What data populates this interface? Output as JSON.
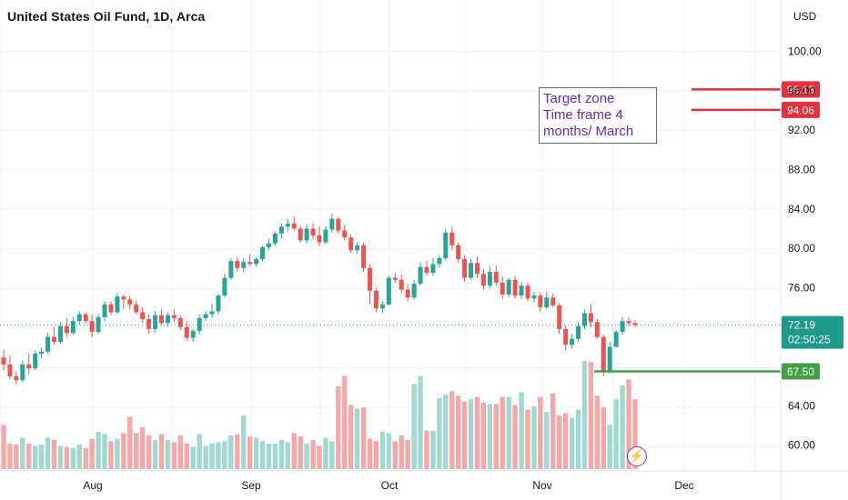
{
  "header": {
    "title": "United States Oil Fund, 1D, Arca",
    "currency": "USD"
  },
  "annotation": {
    "lines": [
      "Target zone",
      "Time frame 4",
      "months/ March"
    ]
  },
  "colors": {
    "up": "#26a69a",
    "down": "#ef5350",
    "volume_up": "#9fd9d2",
    "volume_down": "#f5a8a6",
    "target_line": "#e5303e",
    "support_line": "#43a047",
    "last_price_bg": "#1d9a8a",
    "annotation_text": "#5b2dbf",
    "lightning": "#9c27b0"
  },
  "chart_data": {
    "type": "candlestick",
    "y_axis": {
      "ticks": [
        "100.00",
        "96.00",
        "92.00",
        "88.00",
        "84.00",
        "80.00",
        "76.00",
        "64.00",
        "60.00"
      ],
      "tick_values": [
        100,
        96,
        92,
        88,
        84,
        80,
        76,
        64,
        60
      ],
      "range": [
        57.2,
        103.4
      ]
    },
    "x_axis": {
      "labels": [
        "Aug",
        "Sep",
        "Oct",
        "Nov",
        "Dec"
      ]
    },
    "price_labels": {
      "target_high": "96.13",
      "target_low": "94.06",
      "last_price": "72.19",
      "countdown": "02:50:25",
      "support": "67.50"
    },
    "levels": {
      "target_high": 96.13,
      "target_low": 94.06,
      "last_price": 72.19,
      "support": 67.5
    },
    "volume_heights": [
      0.38,
      0.22,
      0.21,
      0.27,
      0.22,
      0.2,
      0.21,
      0.27,
      0.25,
      0.2,
      0.19,
      0.18,
      0.21,
      0.18,
      0.26,
      0.32,
      0.3,
      0.24,
      0.26,
      0.31,
      0.45,
      0.31,
      0.36,
      0.29,
      0.25,
      0.3,
      0.25,
      0.23,
      0.29,
      0.22,
      0.19,
      0.3,
      0.2,
      0.22,
      0.23,
      0.24,
      0.29,
      0.3,
      0.46,
      0.28,
      0.27,
      0.24,
      0.22,
      0.22,
      0.25,
      0.23,
      0.31,
      0.28,
      0.22,
      0.25,
      0.2,
      0.27,
      0.24,
      0.71,
      0.8,
      0.55,
      0.52,
      0.53,
      0.26,
      0.24,
      0.32,
      0.31,
      0.24,
      0.29,
      0.25,
      0.73,
      0.8,
      0.33,
      0.33,
      0.61,
      0.64,
      0.67,
      0.63,
      0.58,
      0.6,
      0.62,
      0.57,
      0.56,
      0.56,
      0.62,
      0.62,
      0.55,
      0.66,
      0.51,
      0.54,
      0.62,
      0.49,
      0.65,
      0.46,
      0.48,
      0.44,
      0.51,
      0.93,
      0.92,
      0.63,
      0.53,
      0.38,
      0.6,
      0.72,
      0.77,
      0.6,
      0.35
    ]
  }
}
